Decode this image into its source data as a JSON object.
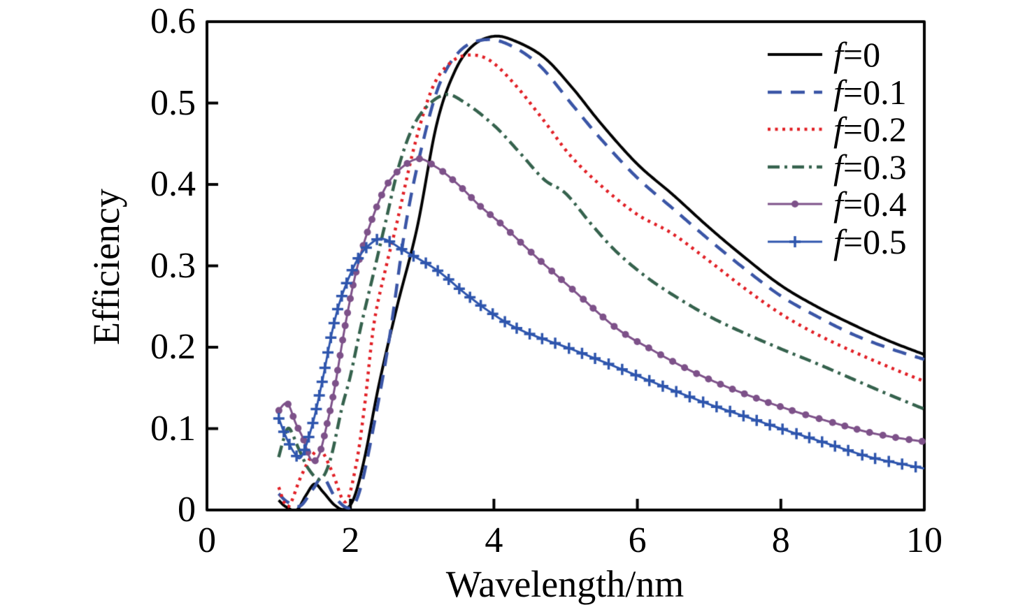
{
  "figure": {
    "title": "",
    "y_axis_label": "Efficiency",
    "x_axis_label": "Wavelength/nm"
  },
  "chart_data": {
    "type": "line",
    "title": "",
    "xlabel": "Wavelength/nm",
    "ylabel": "Efficiency",
    "xlim": [
      0,
      10
    ],
    "ylim": [
      0,
      0.6
    ],
    "x_ticks": [
      0,
      2,
      4,
      6,
      8,
      10
    ],
    "x_tick_labels": [
      "0",
      "2",
      "4",
      "6",
      "8",
      "10"
    ],
    "y_ticks": [
      0,
      0.1,
      0.2,
      0.3,
      0.4,
      0.5,
      0.6
    ],
    "y_tick_labels": [
      "0",
      "0.1",
      "0.2",
      "0.3",
      "0.4",
      "0.5",
      "0.6"
    ],
    "grid": false,
    "legend_position": "top-right",
    "axis_color": "#000000",
    "series": [
      {
        "name": "f=0",
        "color": "#000000",
        "line_style": "solid",
        "line_width": 4,
        "marker": "none",
        "peak": [
          4.0,
          0.582
        ],
        "points": [
          [
            1.0,
            0.012
          ],
          [
            1.1,
            0.004
          ],
          [
            1.25,
            0.0
          ],
          [
            1.38,
            0.018
          ],
          [
            1.5,
            0.032
          ],
          [
            1.62,
            0.022
          ],
          [
            1.78,
            0.006
          ],
          [
            1.92,
            0.001
          ],
          [
            2.05,
            0.015
          ],
          [
            2.2,
            0.065
          ],
          [
            2.4,
            0.155
          ],
          [
            2.65,
            0.25
          ],
          [
            2.93,
            0.347
          ],
          [
            3.2,
            0.473
          ],
          [
            3.45,
            0.538
          ],
          [
            3.7,
            0.57
          ],
          [
            4.0,
            0.582
          ],
          [
            4.3,
            0.576
          ],
          [
            4.7,
            0.556
          ],
          [
            5.1,
            0.518
          ],
          [
            5.5,
            0.474
          ],
          [
            6.0,
            0.425
          ],
          [
            6.5,
            0.387
          ],
          [
            7.0,
            0.347
          ],
          [
            7.5,
            0.31
          ],
          [
            8.0,
            0.276
          ],
          [
            8.5,
            0.25
          ],
          [
            9.0,
            0.228
          ],
          [
            9.5,
            0.208
          ],
          [
            10.0,
            0.191
          ]
        ]
      },
      {
        "name": "f=0.1",
        "color": "#3a55a6",
        "line_style": "dashed",
        "line_width": 4.5,
        "marker": "none",
        "peak": [
          3.9,
          0.578
        ],
        "points": [
          [
            1.0,
            0.02
          ],
          [
            1.12,
            0.01
          ],
          [
            1.3,
            0.005
          ],
          [
            1.48,
            0.026
          ],
          [
            1.62,
            0.04
          ],
          [
            1.8,
            0.014
          ],
          [
            2.0,
            0.003
          ],
          [
            2.15,
            0.03
          ],
          [
            2.35,
            0.115
          ],
          [
            2.55,
            0.215
          ],
          [
            2.77,
            0.35
          ],
          [
            3.0,
            0.448
          ],
          [
            3.25,
            0.525
          ],
          [
            3.55,
            0.566
          ],
          [
            3.9,
            0.578
          ],
          [
            4.25,
            0.57
          ],
          [
            4.65,
            0.545
          ],
          [
            5.1,
            0.497
          ],
          [
            5.5,
            0.455
          ],
          [
            6.0,
            0.408
          ],
          [
            6.5,
            0.37
          ],
          [
            7.0,
            0.332
          ],
          [
            7.5,
            0.296
          ],
          [
            8.0,
            0.263
          ],
          [
            8.5,
            0.238
          ],
          [
            9.0,
            0.216
          ],
          [
            9.5,
            0.199
          ],
          [
            10.0,
            0.185
          ]
        ]
      },
      {
        "name": "f=0.2",
        "color": "#e12026",
        "line_style": "dotted",
        "line_width": 4.5,
        "marker": "none",
        "peak": [
          3.66,
          0.559
        ],
        "points": [
          [
            1.0,
            0.028
          ],
          [
            1.13,
            0.004
          ],
          [
            1.3,
            0.039
          ],
          [
            1.45,
            0.065
          ],
          [
            1.59,
            0.073
          ],
          [
            1.75,
            0.046
          ],
          [
            1.93,
            0.01
          ],
          [
            2.08,
            0.056
          ],
          [
            2.2,
            0.13
          ],
          [
            2.33,
            0.23
          ],
          [
            2.5,
            0.3
          ],
          [
            2.64,
            0.35
          ],
          [
            2.9,
            0.45
          ],
          [
            3.15,
            0.52
          ],
          [
            3.4,
            0.55
          ],
          [
            3.66,
            0.559
          ],
          [
            3.95,
            0.552
          ],
          [
            4.3,
            0.522
          ],
          [
            4.7,
            0.478
          ],
          [
            5.07,
            0.435
          ],
          [
            5.5,
            0.398
          ],
          [
            6.0,
            0.363
          ],
          [
            6.48,
            0.34
          ],
          [
            7.0,
            0.306
          ],
          [
            7.5,
            0.272
          ],
          [
            8.0,
            0.241
          ],
          [
            8.5,
            0.216
          ],
          [
            9.0,
            0.195
          ],
          [
            9.5,
            0.176
          ],
          [
            10.0,
            0.158
          ]
        ]
      },
      {
        "name": "f=0.3",
        "color": "#35624d",
        "line_style": "dashdot",
        "line_width": 4.5,
        "marker": "none",
        "peak": [
          3.3,
          0.51
        ],
        "points": [
          [
            1.0,
            0.065
          ],
          [
            1.08,
            0.09
          ],
          [
            1.15,
            0.1
          ],
          [
            1.28,
            0.075
          ],
          [
            1.42,
            0.05
          ],
          [
            1.58,
            0.038
          ],
          [
            1.72,
            0.062
          ],
          [
            1.88,
            0.125
          ],
          [
            2.0,
            0.165
          ],
          [
            2.15,
            0.227
          ],
          [
            2.32,
            0.29
          ],
          [
            2.48,
            0.35
          ],
          [
            2.7,
            0.43
          ],
          [
            2.95,
            0.483
          ],
          [
            3.3,
            0.51
          ],
          [
            3.62,
            0.499
          ],
          [
            4.02,
            0.471
          ],
          [
            4.35,
            0.44
          ],
          [
            4.7,
            0.406
          ],
          [
            5.0,
            0.389
          ],
          [
            5.35,
            0.352
          ],
          [
            5.7,
            0.318
          ],
          [
            6.1,
            0.288
          ],
          [
            6.5,
            0.264
          ],
          [
            7.0,
            0.238
          ],
          [
            7.5,
            0.217
          ],
          [
            8.0,
            0.198
          ],
          [
            8.5,
            0.18
          ],
          [
            9.0,
            0.161
          ],
          [
            9.5,
            0.142
          ],
          [
            10.0,
            0.124
          ]
        ]
      },
      {
        "name": "f=0.4",
        "color": "#7d5189",
        "line_style": "solid",
        "line_width": 3,
        "marker": "circle",
        "marker_size": 5,
        "marker_spacing": 18,
        "peak": [
          2.91,
          0.431
        ],
        "points": [
          [
            1.0,
            0.122
          ],
          [
            1.12,
            0.131
          ],
          [
            1.24,
            0.106
          ],
          [
            1.34,
            0.088
          ],
          [
            1.45,
            0.062
          ],
          [
            1.56,
            0.067
          ],
          [
            1.68,
            0.108
          ],
          [
            1.78,
            0.15
          ],
          [
            1.94,
            0.233
          ],
          [
            2.1,
            0.3
          ],
          [
            2.3,
            0.357
          ],
          [
            2.55,
            0.405
          ],
          [
            2.91,
            0.431
          ],
          [
            3.2,
            0.421
          ],
          [
            3.5,
            0.4
          ],
          [
            3.8,
            0.374
          ],
          [
            4.12,
            0.35
          ],
          [
            4.6,
            0.31
          ],
          [
            5.07,
            0.273
          ],
          [
            5.7,
            0.224
          ],
          [
            6.2,
            0.197
          ],
          [
            6.7,
            0.173
          ],
          [
            7.2,
            0.153
          ],
          [
            7.7,
            0.136
          ],
          [
            8.2,
            0.121
          ],
          [
            8.7,
            0.108
          ],
          [
            9.2,
            0.096
          ],
          [
            9.6,
            0.089
          ],
          [
            10.0,
            0.084
          ]
        ]
      },
      {
        "name": "f=0.5",
        "color": "#2e55ad",
        "line_style": "solid",
        "line_width": 3,
        "marker": "plus",
        "marker_size": 8,
        "marker_spacing": 19,
        "peak": [
          2.46,
          0.333
        ],
        "points": [
          [
            1.0,
            0.113
          ],
          [
            1.1,
            0.09
          ],
          [
            1.22,
            0.07
          ],
          [
            1.32,
            0.066
          ],
          [
            1.47,
            0.105
          ],
          [
            1.6,
            0.155
          ],
          [
            1.76,
            0.225
          ],
          [
            1.9,
            0.268
          ],
          [
            2.1,
            0.308
          ],
          [
            2.28,
            0.327
          ],
          [
            2.46,
            0.333
          ],
          [
            2.76,
            0.318
          ],
          [
            3.2,
            0.295
          ],
          [
            3.6,
            0.266
          ],
          [
            4.0,
            0.24
          ],
          [
            4.4,
            0.22
          ],
          [
            5.07,
            0.198
          ],
          [
            5.5,
            0.183
          ],
          [
            6.0,
            0.165
          ],
          [
            6.5,
            0.147
          ],
          [
            7.0,
            0.13
          ],
          [
            7.5,
            0.115
          ],
          [
            8.0,
            0.1
          ],
          [
            8.6,
            0.083
          ],
          [
            9.2,
            0.066
          ],
          [
            9.6,
            0.058
          ],
          [
            10.0,
            0.051
          ]
        ]
      }
    ]
  }
}
